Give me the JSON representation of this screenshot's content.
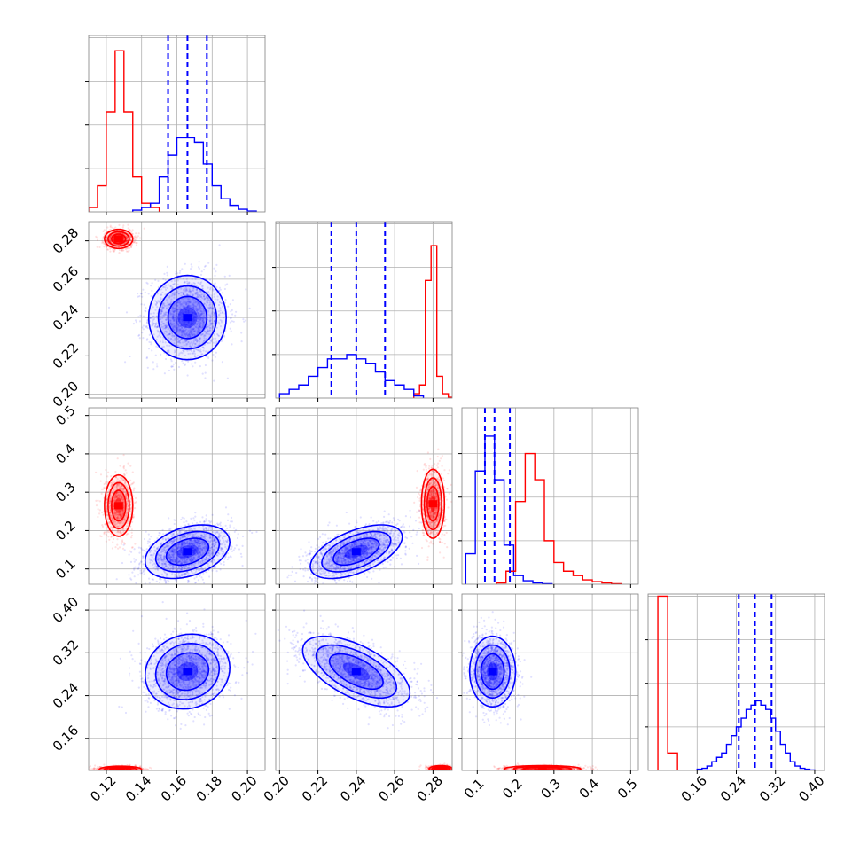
{
  "figure": {
    "type": "corner-plot",
    "n_params": 4
  },
  "colors": {
    "red_series": "#ff0000",
    "blue_series": "#0000ff",
    "grid": "#b0b0b0",
    "axes": "#808080"
  },
  "chart_data": [
    {
      "type": "bar",
      "panel": "marginal-param-1",
      "x_range": [
        0.11,
        0.21
      ],
      "ylim": [
        0,
        0.0405
      ],
      "x_ticks": [
        "0.12",
        "0.14",
        "0.16",
        "0.18",
        "0.20"
      ],
      "x_tick_labels_shown": false,
      "series": [
        {
          "color": "red",
          "edges": [
            0.11,
            0.115,
            0.12,
            0.125,
            0.13,
            0.135,
            0.14,
            0.145,
            0.15
          ],
          "values": [
            0.001,
            0.006,
            0.023,
            0.037,
            0.023,
            0.008,
            0.002,
            0.001
          ]
        },
        {
          "color": "blue",
          "edges": [
            0.135,
            0.14,
            0.145,
            0.15,
            0.155,
            0.16,
            0.165,
            0.17,
            0.175,
            0.18,
            0.185,
            0.19,
            0.195,
            0.2,
            0.205
          ],
          "values": [
            0.0004,
            0.001,
            0.002,
            0.008,
            0.013,
            0.017,
            0.017,
            0.016,
            0.011,
            0.006,
            0.003,
            0.0015,
            0.0006,
            0.0002
          ]
        }
      ],
      "quantile_lines": [
        0.155,
        0.166,
        0.177
      ]
    },
    {
      "type": "bar",
      "panel": "marginal-param-2",
      "x_range": [
        0.198,
        0.29
      ],
      "ylim": [
        0,
        0.0405
      ],
      "x_ticks": [
        "0.20",
        "0.22",
        "0.24",
        "0.26",
        "0.28"
      ],
      "x_tick_labels_shown": false,
      "series": [
        {
          "color": "red",
          "edges": [
            0.27,
            0.273,
            0.276,
            0.279,
            0.282,
            0.285,
            0.288,
            0.291
          ],
          "values": [
            0.001,
            0.003,
            0.027,
            0.035,
            0.005,
            0.001,
            0.0002
          ]
        },
        {
          "color": "blue",
          "edges": [
            0.2,
            0.205,
            0.21,
            0.215,
            0.22,
            0.225,
            0.23,
            0.235,
            0.24,
            0.245,
            0.25,
            0.255,
            0.26,
            0.265,
            0.27,
            0.275
          ],
          "values": [
            0.001,
            0.002,
            0.003,
            0.005,
            0.007,
            0.009,
            0.009,
            0.01,
            0.009,
            0.008,
            0.006,
            0.004,
            0.003,
            0.002,
            0.0005
          ]
        }
      ],
      "quantile_lines": [
        0.227,
        0.24,
        0.255
      ]
    },
    {
      "type": "bar",
      "panel": "marginal-param-3",
      "x_range": [
        0.06,
        0.52
      ],
      "ylim": [
        0,
        0.0405
      ],
      "x_ticks": [
        "0.1",
        "0.2",
        "0.3",
        "0.4",
        "0.5"
      ],
      "x_tick_labels_shown": false,
      "series": [
        {
          "color": "blue",
          "edges": [
            0.07,
            0.095,
            0.12,
            0.145,
            0.17,
            0.195,
            0.22,
            0.245,
            0.27,
            0.295
          ],
          "values": [
            0.007,
            0.026,
            0.034,
            0.024,
            0.009,
            0.002,
            0.0008,
            0.0003,
            0.0001
          ]
        },
        {
          "color": "red",
          "edges": [
            0.15,
            0.175,
            0.2,
            0.225,
            0.25,
            0.275,
            0.3,
            0.325,
            0.35,
            0.375,
            0.4,
            0.425,
            0.45,
            0.475
          ],
          "values": [
            0.0003,
            0.003,
            0.019,
            0.03,
            0.024,
            0.01,
            0.005,
            0.003,
            0.002,
            0.001,
            0.0006,
            0.0003,
            0.0001
          ]
        }
      ],
      "quantile_lines": [
        0.12,
        0.145,
        0.185
      ]
    },
    {
      "type": "bar",
      "panel": "marginal-param-4",
      "x_range": [
        0.06,
        0.42
      ],
      "ylim": [
        0,
        0.0405
      ],
      "x_ticks": [
        "0.16",
        "0.24",
        "0.32",
        "0.40"
      ],
      "x_tick_labels_shown": true,
      "series": [
        {
          "color": "red",
          "edges": [
            0.08,
            0.1,
            0.12
          ],
          "values": [
            0.04,
            0.004
          ]
        },
        {
          "color": "blue",
          "edges": [
            0.16,
            0.17,
            0.18,
            0.19,
            0.2,
            0.21,
            0.22,
            0.23,
            0.24,
            0.25,
            0.26,
            0.27,
            0.28,
            0.29,
            0.3,
            0.31,
            0.32,
            0.33,
            0.34,
            0.35,
            0.36,
            0.37,
            0.38,
            0.39,
            0.4
          ],
          "values": [
            0.0003,
            0.0005,
            0.001,
            0.002,
            0.003,
            0.004,
            0.006,
            0.008,
            0.01,
            0.012,
            0.014,
            0.015,
            0.016,
            0.015,
            0.014,
            0.012,
            0.009,
            0.006,
            0.004,
            0.002,
            0.001,
            0.0005,
            0.0003,
            0.0001
          ]
        }
      ],
      "quantile_lines": [
        0.245,
        0.278,
        0.312
      ]
    },
    {
      "type": "scatter",
      "panel": "joint-param-1-vs-param-2",
      "x_range": [
        0.11,
        0.21
      ],
      "y_range": [
        0.198,
        0.29
      ],
      "x_ticks": [
        "0.12",
        "0.14",
        "0.16",
        "0.18",
        "0.20"
      ],
      "x_tick_labels_shown": false,
      "y_ticks": [
        "0.20",
        "0.22",
        "0.24",
        "0.26",
        "0.28"
      ],
      "y_tick_labels_shown": true,
      "series": [
        {
          "color": "blue",
          "center": [
            0.166,
            0.24
          ],
          "std": [
            0.011,
            0.011
          ],
          "corr": 0
        },
        {
          "color": "red",
          "center": [
            0.127,
            0.281
          ],
          "std": [
            0.004,
            0.0025
          ],
          "corr": 0
        }
      ]
    },
    {
      "type": "scatter",
      "panel": "joint-param-1-vs-param-3",
      "x_range": [
        0.11,
        0.21
      ],
      "y_range": [
        0.06,
        0.52
      ],
      "x_ticks": [
        "0.12",
        "0.14",
        "0.16",
        "0.18",
        "0.20"
      ],
      "x_tick_labels_shown": false,
      "y_ticks": [
        "0.1",
        "0.2",
        "0.3",
        "0.4",
        "0.5"
      ],
      "y_tick_labels_shown": true,
      "series": [
        {
          "color": "blue",
          "center": [
            0.166,
            0.145
          ],
          "std": [
            0.012,
            0.035
          ],
          "corr": 0.35
        },
        {
          "color": "red",
          "center": [
            0.127,
            0.265
          ],
          "std": [
            0.004,
            0.04
          ],
          "corr": 0
        }
      ]
    },
    {
      "type": "scatter",
      "panel": "joint-param-2-vs-param-3",
      "x_range": [
        0.198,
        0.29
      ],
      "y_range": [
        0.06,
        0.52
      ],
      "x_ticks": [
        "0.20",
        "0.22",
        "0.24",
        "0.26",
        "0.28"
      ],
      "x_tick_labels_shown": false,
      "y_ticks": [
        "0.1",
        "0.2",
        "0.3",
        "0.4",
        "0.5"
      ],
      "y_tick_labels_shown": false,
      "series": [
        {
          "color": "blue",
          "center": [
            0.24,
            0.145
          ],
          "std": [
            0.012,
            0.035
          ],
          "corr": 0.55
        },
        {
          "color": "red",
          "center": [
            0.28,
            0.27
          ],
          "std": [
            0.003,
            0.045
          ],
          "corr": 0
        }
      ]
    },
    {
      "type": "scatter",
      "panel": "joint-param-1-vs-param-4",
      "x_range": [
        0.11,
        0.21
      ],
      "y_range": [
        0.1,
        0.43
      ],
      "x_ticks": [
        "0.12",
        "0.14",
        "0.16",
        "0.18",
        "0.20"
      ],
      "x_tick_labels_shown": true,
      "y_ticks": [
        "0.16",
        "0.24",
        "0.32",
        "0.40"
      ],
      "y_tick_labels_shown": true,
      "series": [
        {
          "color": "blue",
          "center": [
            0.166,
            0.285
          ],
          "std": [
            0.012,
            0.035
          ],
          "corr": 0.1
        },
        {
          "color": "red",
          "center": [
            0.128,
            0.102
          ],
          "std": [
            0.006,
            0.003
          ],
          "corr": 0
        }
      ]
    },
    {
      "type": "scatter",
      "panel": "joint-param-2-vs-param-4",
      "x_range": [
        0.198,
        0.29
      ],
      "y_range": [
        0.1,
        0.43
      ],
      "x_ticks": [
        "0.20",
        "0.22",
        "0.24",
        "0.26",
        "0.28"
      ],
      "x_tick_labels_shown": true,
      "y_ticks": [
        "0.16",
        "0.24",
        "0.32",
        "0.40"
      ],
      "y_tick_labels_shown": false,
      "series": [
        {
          "color": "blue",
          "center": [
            0.24,
            0.285
          ],
          "std": [
            0.014,
            0.033
          ],
          "corr": -0.6
        },
        {
          "color": "red",
          "center": [
            0.284,
            0.103
          ],
          "std": [
            0.003,
            0.003
          ],
          "corr": 0
        }
      ]
    },
    {
      "type": "scatter",
      "panel": "joint-param-3-vs-param-4",
      "x_range": [
        0.06,
        0.52
      ],
      "y_range": [
        0.1,
        0.43
      ],
      "x_ticks": [
        "0.1",
        "0.2",
        "0.3",
        "0.4",
        "0.5"
      ],
      "x_tick_labels_shown": true,
      "y_ticks": [
        "0.16",
        "0.24",
        "0.32",
        "0.40"
      ],
      "y_tick_labels_shown": false,
      "series": [
        {
          "color": "blue",
          "center": [
            0.14,
            0.285
          ],
          "std": [
            0.03,
            0.033
          ],
          "corr": 0
        },
        {
          "color": "red",
          "center": [
            0.27,
            0.103
          ],
          "std": [
            0.05,
            0.003
          ],
          "corr": 0
        }
      ]
    }
  ]
}
